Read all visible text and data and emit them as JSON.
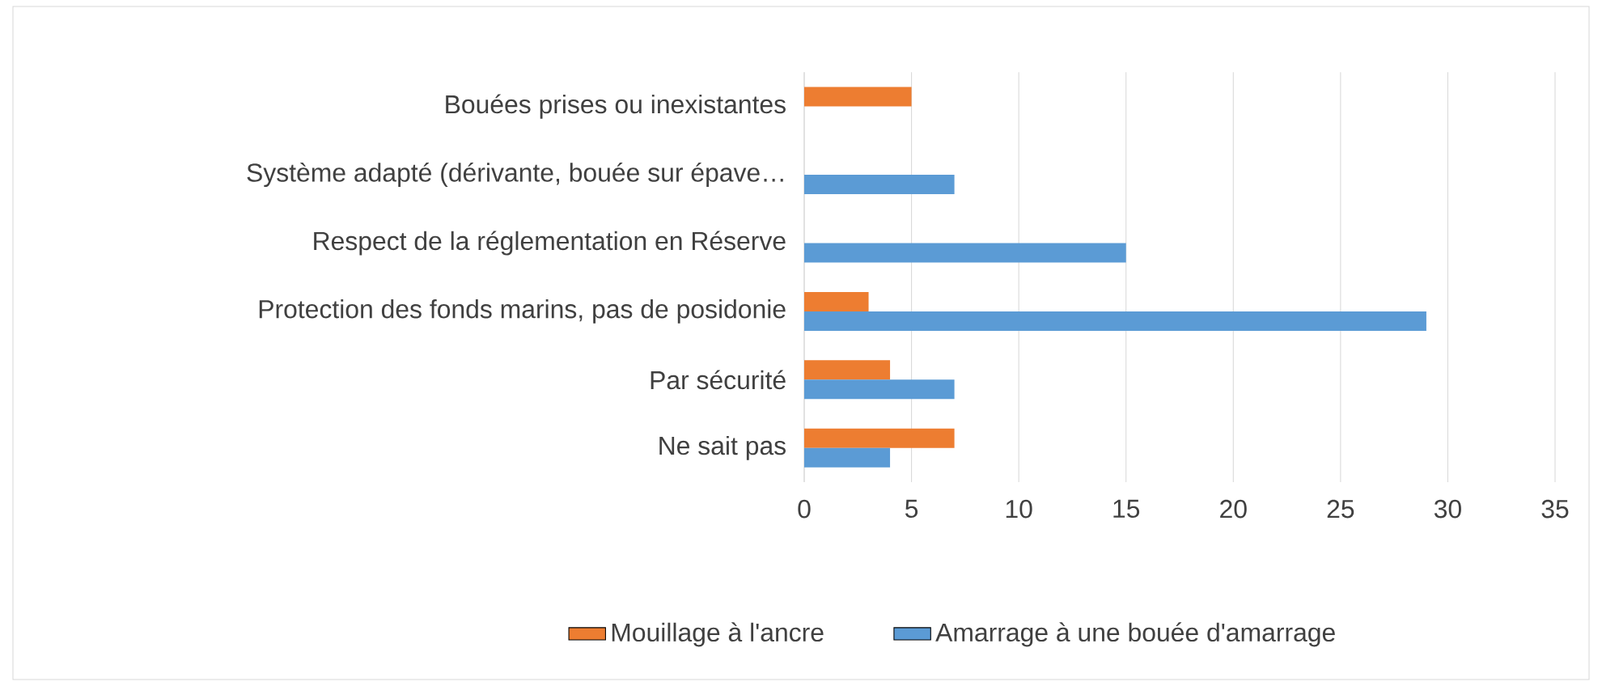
{
  "chart_data": {
    "type": "bar",
    "orientation": "horizontal",
    "categories": [
      "Bouées prises ou inexistantes",
      "Système adapté (dérivante, bouée sur épave…",
      "Respect de la réglementation en Réserve",
      "Protection des fonds marins, pas de posidonie",
      "Par sécurité",
      "Ne sait pas"
    ],
    "series": [
      {
        "name": "Mouillage à l'ancre",
        "color": "#ed7d31",
        "values": [
          5,
          null,
          null,
          3,
          4,
          7
        ]
      },
      {
        "name": "Amarrage à une bouée d'amarrage",
        "color": "#5b9bd5",
        "values": [
          null,
          7,
          15,
          29,
          7,
          4
        ]
      }
    ],
    "xlim": [
      0,
      35
    ],
    "xticks": [
      0,
      5,
      10,
      15,
      20,
      25,
      30,
      35
    ],
    "grid": "x",
    "legend": "bottom"
  }
}
